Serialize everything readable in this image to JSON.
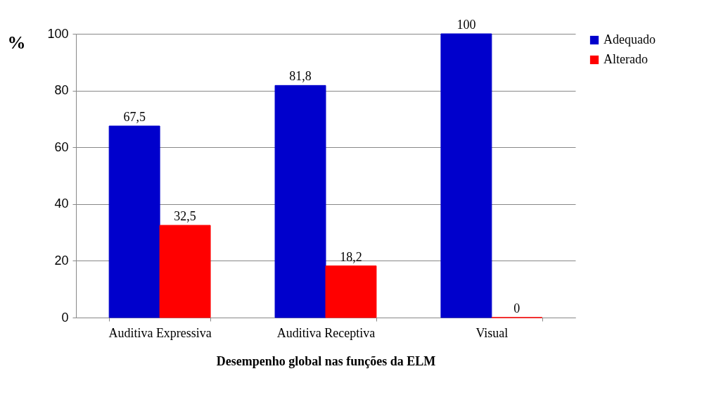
{
  "chart_data": {
    "type": "bar",
    "ylabel": "%",
    "xlabel": "Desempenho global nas funções da ELM",
    "categories": [
      "Auditiva Expressiva",
      "Auditiva Receptiva",
      "Visual"
    ],
    "series": [
      {
        "name": "Adequado",
        "color": "#0000cc",
        "values": [
          67.5,
          81.8,
          100
        ],
        "value_labels": [
          "67,5",
          "81,8",
          "100"
        ]
      },
      {
        "name": "Alterado",
        "color": "#ff0000",
        "values": [
          32.5,
          18.2,
          0
        ],
        "value_labels": [
          "32,5",
          "18,2",
          "0"
        ]
      }
    ],
    "ylim": [
      0,
      100
    ],
    "yticks": [
      0,
      20,
      40,
      60,
      80,
      100
    ],
    "grid": "y",
    "legend": "right"
  }
}
